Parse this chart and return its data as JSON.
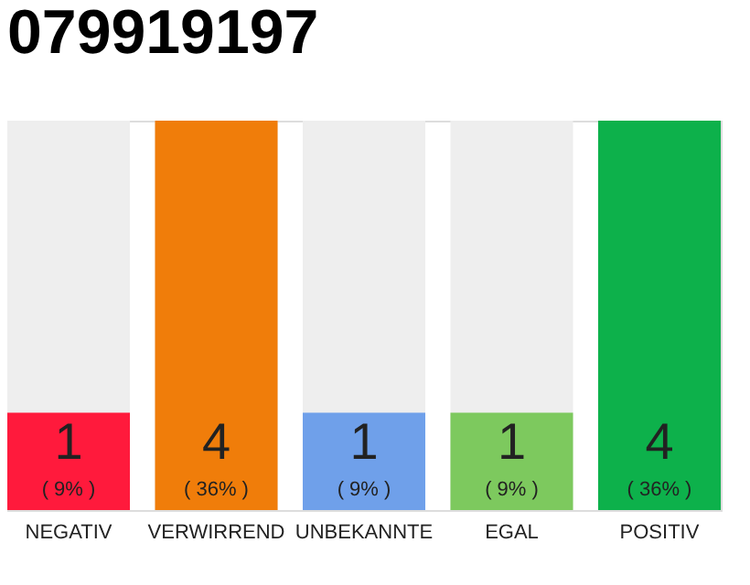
{
  "chart_data": {
    "type": "bar",
    "title": "079919197",
    "categories": [
      "NEGATIV",
      "VERWIRREND",
      "UNBEKANNTE",
      "EGAL",
      "POSITIV"
    ],
    "values": [
      1,
      4,
      1,
      1,
      4
    ],
    "colors": [
      "#ff1a3c",
      "#f07d0a",
      "#6fa0ea",
      "#7dc95e",
      "#0db14b"
    ],
    "ylim": [
      0,
      4
    ],
    "tick_labels": "x",
    "grid": false,
    "data_labels": true,
    "annotations": [
      "( 9% )",
      "( 36% )",
      "( 9% )",
      "( 9% )",
      "( 36% )"
    ]
  }
}
